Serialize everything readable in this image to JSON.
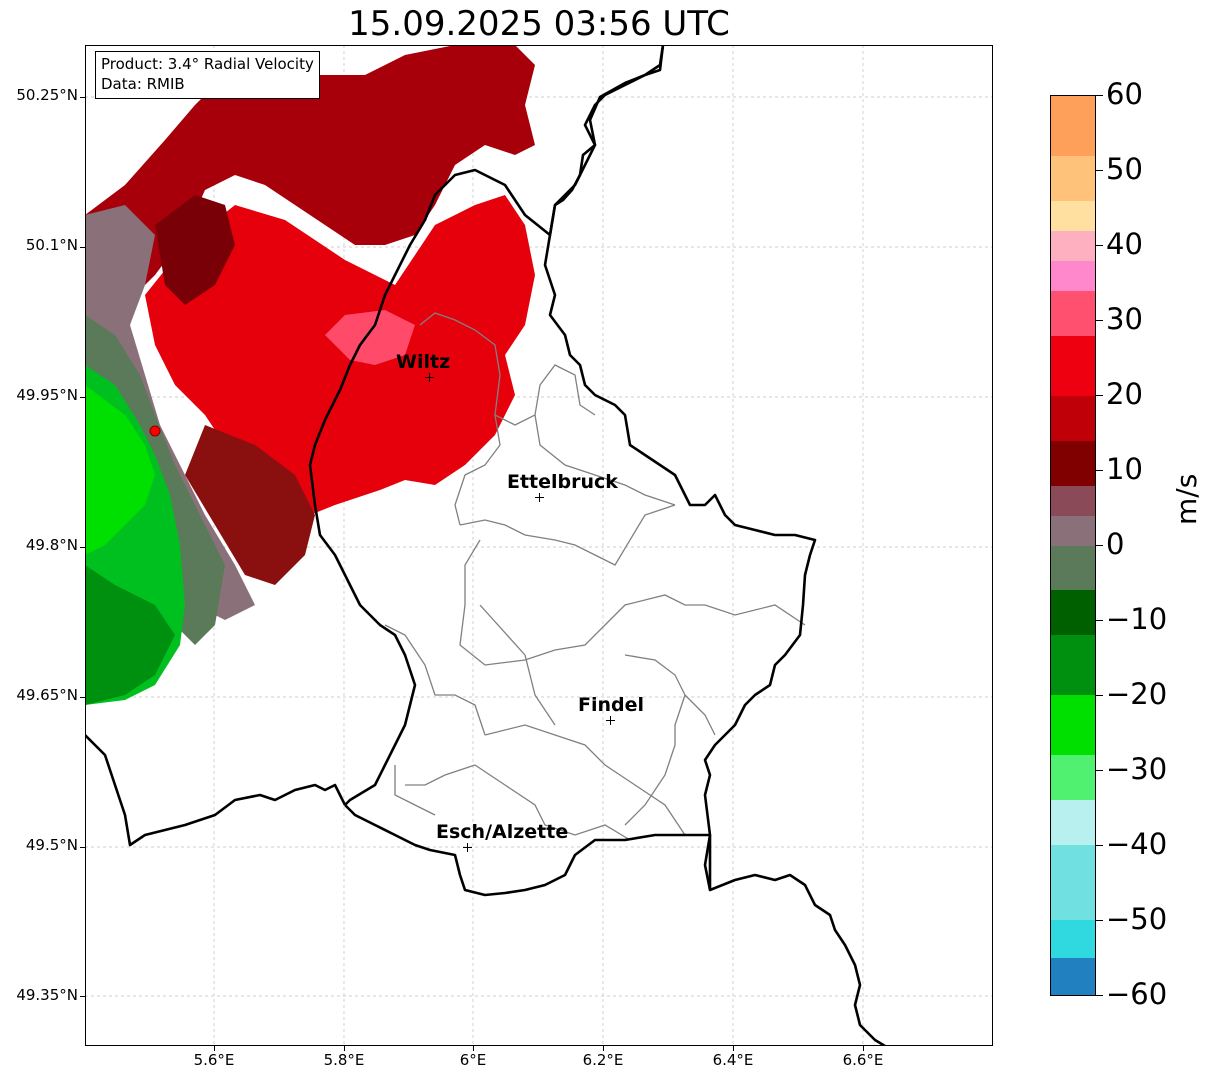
{
  "title": "15.09.2025 03:56 UTC",
  "info": {
    "product": "Product: 3.4° Radial Velocity",
    "data_source": "Data: RMIB"
  },
  "axes": {
    "y_ticks": [
      "50.25°N",
      "50.1°N",
      "49.95°N",
      "49.8°N",
      "49.65°N",
      "49.5°N",
      "49.35°N"
    ],
    "x_ticks": [
      "5.6°E",
      "5.8°E",
      "6°E",
      "6.2°E",
      "6.4°E",
      "6.6°E"
    ]
  },
  "cities": [
    {
      "name": "Wiltz",
      "lon": 5.93,
      "lat": 49.97
    },
    {
      "name": "Ettelbruck",
      "lon": 6.1,
      "lat": 49.85
    },
    {
      "name": "Findel",
      "lon": 6.21,
      "lat": 49.63
    },
    {
      "name": "Esch/Alzette",
      "lon": 5.99,
      "lat": 49.5
    }
  ],
  "radar_site": {
    "color": "#ff0000"
  },
  "colorbar": {
    "unit": "m/s",
    "min": -60,
    "max": 60,
    "tick_labels": [
      "60",
      "50",
      "40",
      "30",
      "20",
      "10",
      "0",
      "−10",
      "−20",
      "−30",
      "−40",
      "−50",
      "−60"
    ],
    "bands": [
      {
        "from": 52,
        "to": 60,
        "color": "#ffa05a"
      },
      {
        "from": 46,
        "to": 52,
        "color": "#ffc27a"
      },
      {
        "from": 42,
        "to": 46,
        "color": "#ffe0a0"
      },
      {
        "from": 38,
        "to": 42,
        "color": "#ffb0c0"
      },
      {
        "from": 34,
        "to": 38,
        "color": "#ff88cc"
      },
      {
        "from": 28,
        "to": 34,
        "color": "#ff5070"
      },
      {
        "from": 20,
        "to": 28,
        "color": "#ee0010"
      },
      {
        "from": 14,
        "to": 20,
        "color": "#c00008"
      },
      {
        "from": 8,
        "to": 14,
        "color": "#800000"
      },
      {
        "from": 4,
        "to": 8,
        "color": "#8a4a58"
      },
      {
        "from": 0,
        "to": 4,
        "color": "#8a7078"
      },
      {
        "from": -6,
        "to": 0,
        "color": "#5a7a5a"
      },
      {
        "from": -12,
        "to": -6,
        "color": "#006000"
      },
      {
        "from": -20,
        "to": -12,
        "color": "#009010"
      },
      {
        "from": -28,
        "to": -20,
        "color": "#00e000"
      },
      {
        "from": -34,
        "to": -28,
        "color": "#50f070"
      },
      {
        "from": -40,
        "to": -34,
        "color": "#b8f0f0"
      },
      {
        "from": -50,
        "to": -40,
        "color": "#70e0e0"
      },
      {
        "from": -55,
        "to": -50,
        "color": "#30d8e0"
      },
      {
        "from": -60,
        "to": -55,
        "color": "#2080c0"
      }
    ]
  },
  "colors": {
    "border_national": "#000000",
    "border_cantonal": "#808080",
    "grid": "#c0c0c0"
  }
}
